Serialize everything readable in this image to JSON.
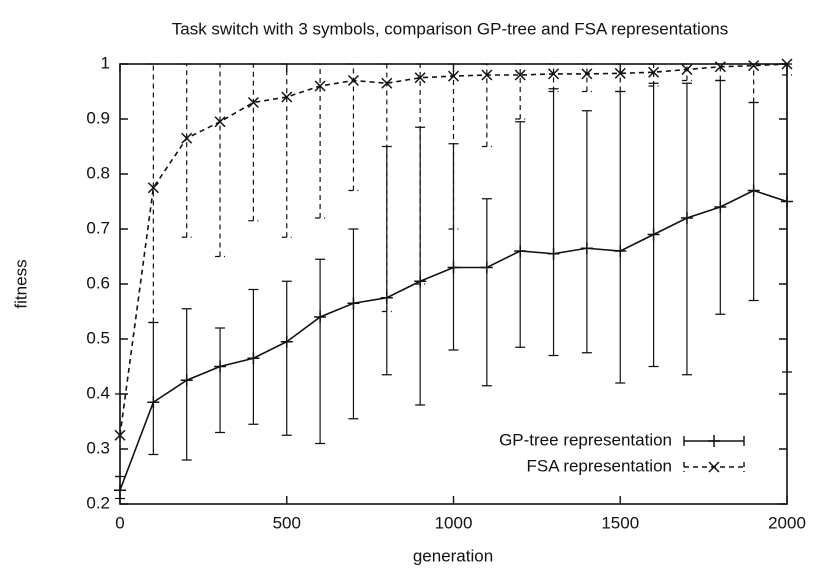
{
  "chart_data": {
    "type": "line",
    "title": "Task switch with 3 symbols, comparison GP-tree and FSA representations",
    "xlabel": "generation",
    "ylabel": "fitness",
    "x": [
      0,
      100,
      200,
      300,
      400,
      500,
      600,
      700,
      800,
      900,
      1000,
      1100,
      1200,
      1300,
      1400,
      1500,
      1600,
      1700,
      1800,
      1900,
      2000
    ],
    "xlim": [
      0,
      2000
    ],
    "xticks": [
      0,
      500,
      1000,
      1500,
      2000
    ],
    "ylim": [
      0.2,
      1
    ],
    "yticks": [
      0.2,
      0.3,
      0.4,
      0.5,
      0.6,
      0.7,
      0.8,
      0.9,
      1
    ],
    "legend": "lower right",
    "series": [
      {
        "name": "GP-tree representation",
        "color": "#111111",
        "linestyle": "solid",
        "marker": "+",
        "values": [
          0.225,
          0.385,
          0.425,
          0.45,
          0.465,
          0.495,
          0.54,
          0.565,
          0.575,
          0.605,
          0.63,
          0.63,
          0.66,
          0.655,
          0.665,
          0.66,
          0.69,
          0.72,
          0.74,
          0.77,
          0.75
        ],
        "low": [
          0.21,
          0.29,
          0.28,
          0.33,
          0.345,
          0.325,
          0.31,
          0.355,
          0.435,
          0.38,
          0.48,
          0.415,
          0.485,
          0.47,
          0.475,
          0.42,
          0.45,
          0.435,
          0.545,
          0.57,
          0.44
        ],
        "high": [
          0.25,
          0.53,
          0.555,
          0.52,
          0.59,
          0.605,
          0.645,
          0.7,
          0.85,
          0.885,
          0.855,
          0.755,
          0.895,
          0.955,
          0.915,
          0.95,
          0.965,
          0.965,
          0.97,
          0.93,
          1
        ]
      },
      {
        "name": "FSA representation",
        "color": "#111111",
        "linestyle": "dashed",
        "marker": "x",
        "values": [
          0.325,
          0.775,
          0.865,
          0.895,
          0.93,
          0.94,
          0.96,
          0.97,
          0.965,
          0.975,
          0.978,
          0.98,
          0.98,
          0.982,
          0.982,
          0.983,
          0.985,
          0.99,
          0.995,
          0.997,
          1
        ],
        "low": [
          0.25,
          0.53,
          0.685,
          0.65,
          0.715,
          0.685,
          0.72,
          0.77,
          0.55,
          0.6,
          0.7,
          0.85,
          0.9,
          0.95,
          0.95,
          0.95,
          0.96,
          0.97,
          0.97,
          0.93,
          0.98
        ],
        "high": [
          0.4,
          1,
          1,
          1,
          1,
          1,
          1,
          1,
          1,
          1,
          1,
          1,
          1,
          1,
          1,
          1,
          1,
          1,
          1,
          1,
          1
        ]
      }
    ]
  }
}
